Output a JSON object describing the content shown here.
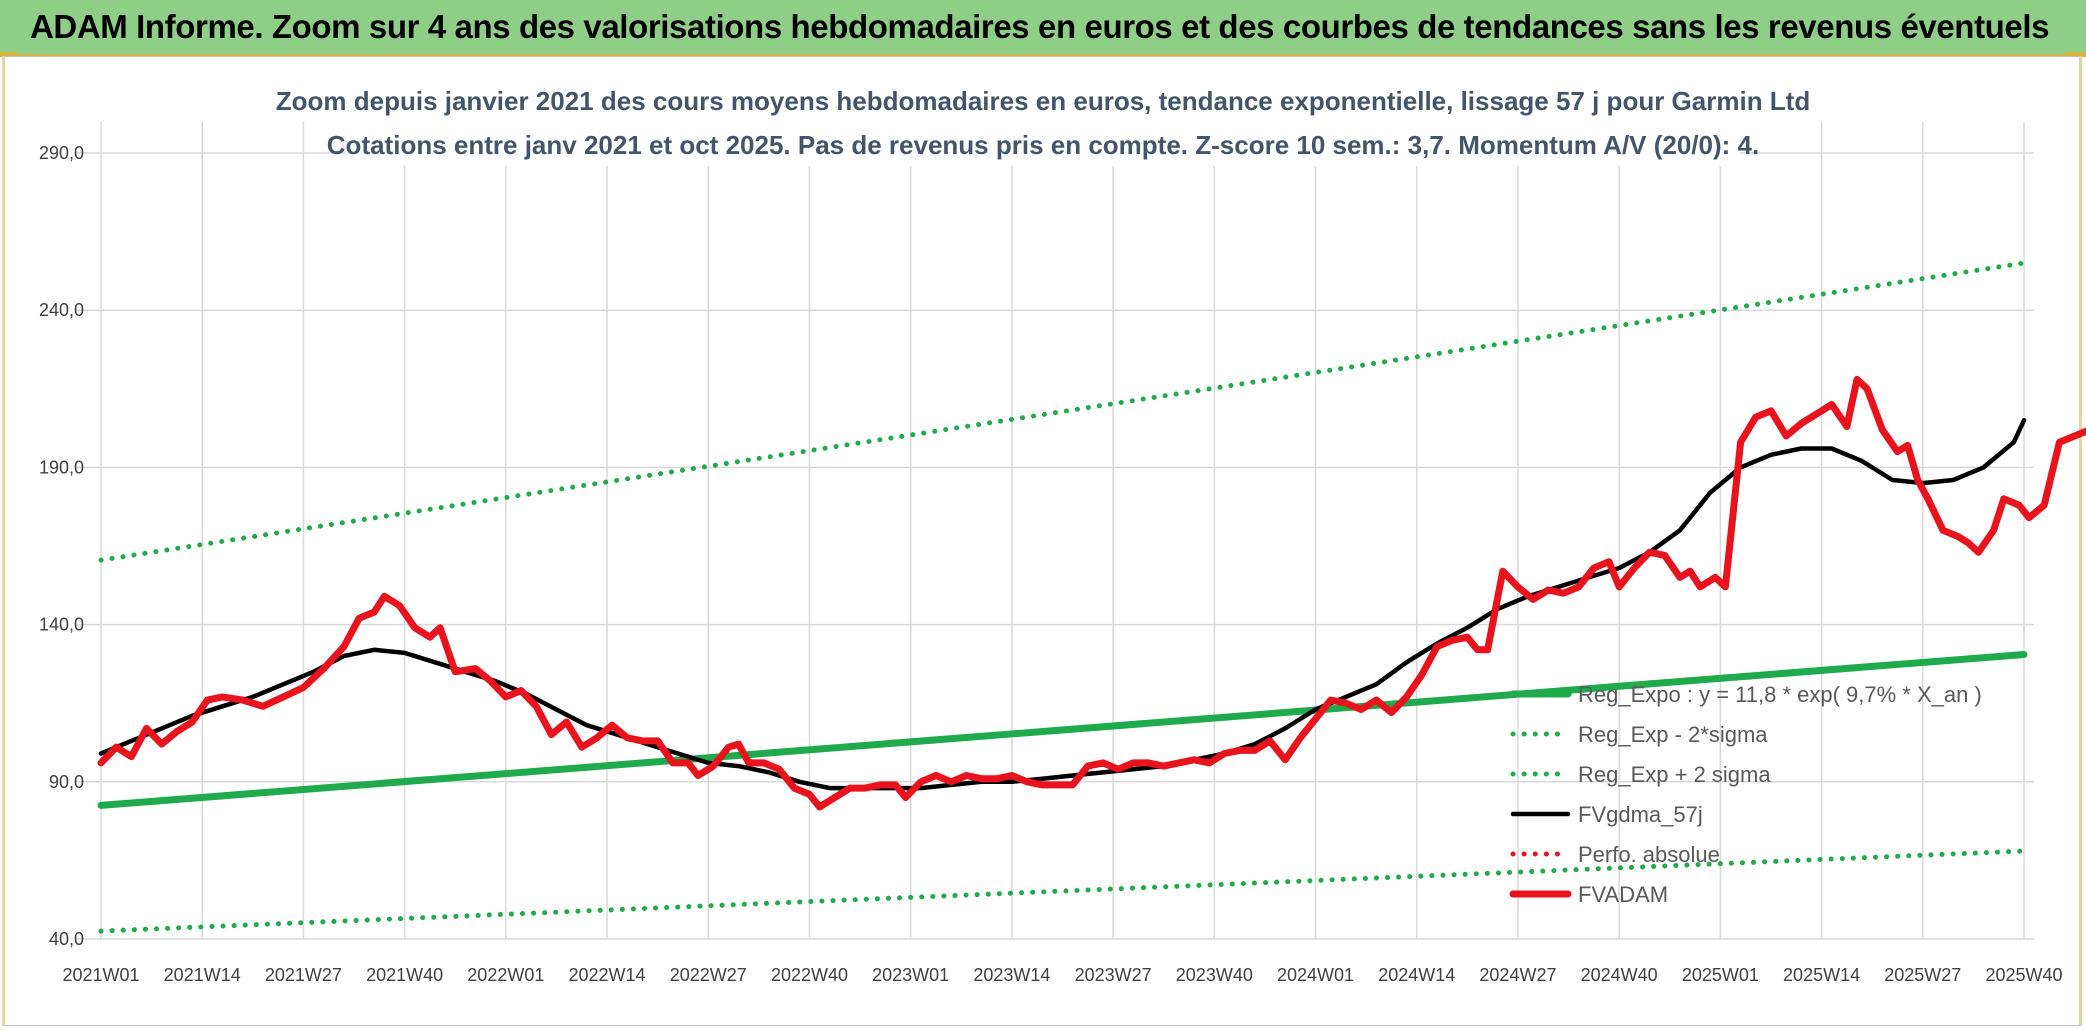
{
  "banner": {
    "title": "ADAM Informe. Zoom sur 4 ans des valorisations hebdomadaires en euros et des courbes de tendances sans les revenus éventuels"
  },
  "chart_data": {
    "type": "line",
    "title_line1": "Zoom depuis janvier 2021 des cours moyens hebdomadaires en euros, tendance exponentielle, lissage 57 j pour Garmin Ltd",
    "title_line2": "Cotations entre janv 2021 et oct 2025. Pas de revenus pris en compte. Z-score 10 sem.: 3,7. Momentum A/V (20/0): 4.",
    "ylim": [
      40,
      290
    ],
    "y_ticks": [
      "40,0",
      "90,0",
      "140,0",
      "190,0",
      "240,0",
      "290,0"
    ],
    "x_ticks": [
      "2021W01",
      "2021W14",
      "2021W27",
      "2021W40",
      "2022W01",
      "2022W14",
      "2022W27",
      "2022W40",
      "2023W01",
      "2023W14",
      "2023W27",
      "2023W40",
      "2024W01",
      "2024W14",
      "2024W27",
      "2024W40",
      "2025W01",
      "2025W14",
      "2025W27",
      "2025W40"
    ],
    "grid": true,
    "legend_position": "bottom-right",
    "colors": {
      "green": "#1faa4b",
      "black": "#000000",
      "red": "#e8131c",
      "grid": "#d9d9d9"
    },
    "series": [
      {
        "name": "Reg_Expo : y = 11,8 * exp( 9,7% *  X_an )",
        "style": "solid-thick",
        "color": "#1faa4b",
        "points": [
          [
            0,
            82.5
          ],
          [
            19,
            130.5
          ]
        ]
      },
      {
        "name": "Reg_Exp - 2*sigma",
        "style": "dotted",
        "color": "#1faa4b",
        "points": [
          [
            0,
            42.5
          ],
          [
            19,
            68.0
          ]
        ]
      },
      {
        "name": "Reg_Exp + 2 sigma",
        "style": "dotted",
        "color": "#1faa4b",
        "points": [
          [
            0,
            160.5
          ],
          [
            19,
            255.0
          ]
        ]
      },
      {
        "name": "FVgdma_57j",
        "style": "solid",
        "color": "#000000",
        "points": [
          [
            0,
            99
          ],
          [
            0.3,
            103
          ],
          [
            0.6,
            107
          ],
          [
            0.9,
            111
          ],
          [
            1.2,
            114
          ],
          [
            1.5,
            117
          ],
          [
            1.8,
            121
          ],
          [
            2.1,
            125
          ],
          [
            2.4,
            130
          ],
          [
            2.7,
            132
          ],
          [
            3.0,
            131
          ],
          [
            3.3,
            128
          ],
          [
            3.6,
            125
          ],
          [
            3.9,
            122
          ],
          [
            4.2,
            118
          ],
          [
            4.5,
            113
          ],
          [
            4.8,
            108
          ],
          [
            5.1,
            105
          ],
          [
            5.4,
            102
          ],
          [
            5.7,
            99
          ],
          [
            6.0,
            96
          ],
          [
            6.3,
            95
          ],
          [
            6.6,
            93
          ],
          [
            6.9,
            90
          ],
          [
            7.2,
            88
          ],
          [
            7.5,
            88
          ],
          [
            7.8,
            88
          ],
          [
            8.1,
            88
          ],
          [
            8.4,
            89
          ],
          [
            8.7,
            90
          ],
          [
            9.0,
            90
          ],
          [
            9.3,
            91
          ],
          [
            9.6,
            92
          ],
          [
            9.9,
            93
          ],
          [
            10.2,
            94
          ],
          [
            10.5,
            95
          ],
          [
            10.8,
            97
          ],
          [
            11.1,
            99
          ],
          [
            11.4,
            102
          ],
          [
            11.7,
            107
          ],
          [
            12.0,
            113
          ],
          [
            12.3,
            117
          ],
          [
            12.6,
            121
          ],
          [
            12.9,
            128
          ],
          [
            13.2,
            134
          ],
          [
            13.5,
            139
          ],
          [
            13.8,
            145
          ],
          [
            14.1,
            149
          ],
          [
            14.4,
            152
          ],
          [
            14.7,
            155
          ],
          [
            15.0,
            158
          ],
          [
            15.3,
            163
          ],
          [
            15.6,
            170
          ],
          [
            15.9,
            182
          ],
          [
            16.2,
            190
          ],
          [
            16.5,
            194
          ],
          [
            16.8,
            196
          ],
          [
            17.1,
            196
          ],
          [
            17.4,
            192
          ],
          [
            17.7,
            186
          ],
          [
            18.0,
            185
          ],
          [
            18.3,
            186
          ],
          [
            18.6,
            190
          ],
          [
            18.9,
            198
          ],
          [
            19.0,
            205
          ]
        ]
      },
      {
        "name": "Perfo. absolue",
        "style": "dotted",
        "color": "#e8131c",
        "points": []
      },
      {
        "name": "FVADAM",
        "style": "solid-thick",
        "color": "#e8131c",
        "points": [
          [
            0,
            96
          ],
          [
            0.15,
            101
          ],
          [
            0.3,
            98
          ],
          [
            0.45,
            107
          ],
          [
            0.6,
            102
          ],
          [
            0.75,
            106
          ],
          [
            0.9,
            109
          ],
          [
            1.05,
            116
          ],
          [
            1.2,
            117
          ],
          [
            1.4,
            116
          ],
          [
            1.6,
            114
          ],
          [
            1.8,
            117
          ],
          [
            2.0,
            120
          ],
          [
            2.2,
            126
          ],
          [
            2.4,
            133
          ],
          [
            2.55,
            142
          ],
          [
            2.7,
            144
          ],
          [
            2.8,
            149
          ],
          [
            2.95,
            146
          ],
          [
            3.1,
            139
          ],
          [
            3.25,
            136
          ],
          [
            3.35,
            139
          ],
          [
            3.5,
            125
          ],
          [
            3.7,
            126
          ],
          [
            3.85,
            122
          ],
          [
            4.0,
            117
          ],
          [
            4.15,
            119
          ],
          [
            4.3,
            114
          ],
          [
            4.45,
            105
          ],
          [
            4.6,
            109
          ],
          [
            4.75,
            101
          ],
          [
            4.9,
            104
          ],
          [
            5.05,
            108
          ],
          [
            5.2,
            104
          ],
          [
            5.35,
            103
          ],
          [
            5.5,
            103
          ],
          [
            5.65,
            96
          ],
          [
            5.8,
            96
          ],
          [
            5.9,
            92
          ],
          [
            6.05,
            95
          ],
          [
            6.2,
            101
          ],
          [
            6.3,
            102
          ],
          [
            6.4,
            96
          ],
          [
            6.55,
            96
          ],
          [
            6.7,
            94
          ],
          [
            6.85,
            88
          ],
          [
            7.0,
            86
          ],
          [
            7.1,
            82
          ],
          [
            7.25,
            85
          ],
          [
            7.4,
            88
          ],
          [
            7.55,
            88
          ],
          [
            7.7,
            89
          ],
          [
            7.85,
            89
          ],
          [
            7.95,
            85
          ],
          [
            8.1,
            90
          ],
          [
            8.25,
            92
          ],
          [
            8.4,
            90
          ],
          [
            8.55,
            92
          ],
          [
            8.7,
            91
          ],
          [
            8.85,
            91
          ],
          [
            9.0,
            92
          ],
          [
            9.15,
            90
          ],
          [
            9.3,
            89
          ],
          [
            9.45,
            89
          ],
          [
            9.6,
            89
          ],
          [
            9.75,
            95
          ],
          [
            9.9,
            96
          ],
          [
            10.05,
            94
          ],
          [
            10.2,
            96
          ],
          [
            10.35,
            96
          ],
          [
            10.5,
            95
          ],
          [
            10.65,
            96
          ],
          [
            10.8,
            97
          ],
          [
            10.95,
            96
          ],
          [
            11.1,
            99
          ],
          [
            11.25,
            100
          ],
          [
            11.4,
            100
          ],
          [
            11.55,
            103
          ],
          [
            11.7,
            97
          ],
          [
            11.85,
            104
          ],
          [
            12.0,
            110
          ],
          [
            12.15,
            116
          ],
          [
            12.3,
            115
          ],
          [
            12.45,
            113
          ],
          [
            12.6,
            116
          ],
          [
            12.75,
            112
          ],
          [
            12.9,
            117
          ],
          [
            13.05,
            124
          ],
          [
            13.2,
            133
          ],
          [
            13.35,
            135
          ],
          [
            13.5,
            136
          ],
          [
            13.6,
            132
          ],
          [
            13.7,
            132
          ],
          [
            13.85,
            157
          ],
          [
            14.0,
            152
          ],
          [
            14.15,
            148
          ],
          [
            14.3,
            151
          ],
          [
            14.45,
            150
          ],
          [
            14.6,
            152
          ],
          [
            14.75,
            158
          ],
          [
            14.9,
            160
          ],
          [
            15.0,
            152
          ],
          [
            15.15,
            158
          ],
          [
            15.3,
            163
          ],
          [
            15.45,
            162
          ],
          [
            15.6,
            155
          ],
          [
            15.7,
            157
          ],
          [
            15.8,
            152
          ],
          [
            15.95,
            155
          ],
          [
            16.05,
            152
          ],
          [
            16.2,
            198
          ],
          [
            16.35,
            206
          ],
          [
            16.5,
            208
          ],
          [
            16.65,
            200
          ],
          [
            16.8,
            204
          ],
          [
            16.95,
            207
          ],
          [
            17.1,
            210
          ],
          [
            17.25,
            203
          ],
          [
            17.35,
            218
          ],
          [
            17.45,
            215
          ],
          [
            17.6,
            202
          ],
          [
            17.75,
            195
          ],
          [
            17.85,
            197
          ],
          [
            17.95,
            186
          ],
          [
            18.05,
            180
          ],
          [
            18.2,
            170
          ],
          [
            18.35,
            168
          ],
          [
            18.45,
            166
          ],
          [
            18.55,
            163
          ],
          [
            18.7,
            170
          ],
          [
            18.8,
            180
          ],
          [
            18.95,
            178
          ],
          [
            19.05,
            174
          ],
          [
            19.2,
            178
          ],
          [
            19.35,
            198
          ],
          [
            19.5,
            200
          ],
          [
            19.65,
            202
          ],
          [
            19.8,
            204
          ],
          [
            19.9,
            202
          ],
          [
            20.0,
            213
          ]
        ]
      }
    ]
  }
}
